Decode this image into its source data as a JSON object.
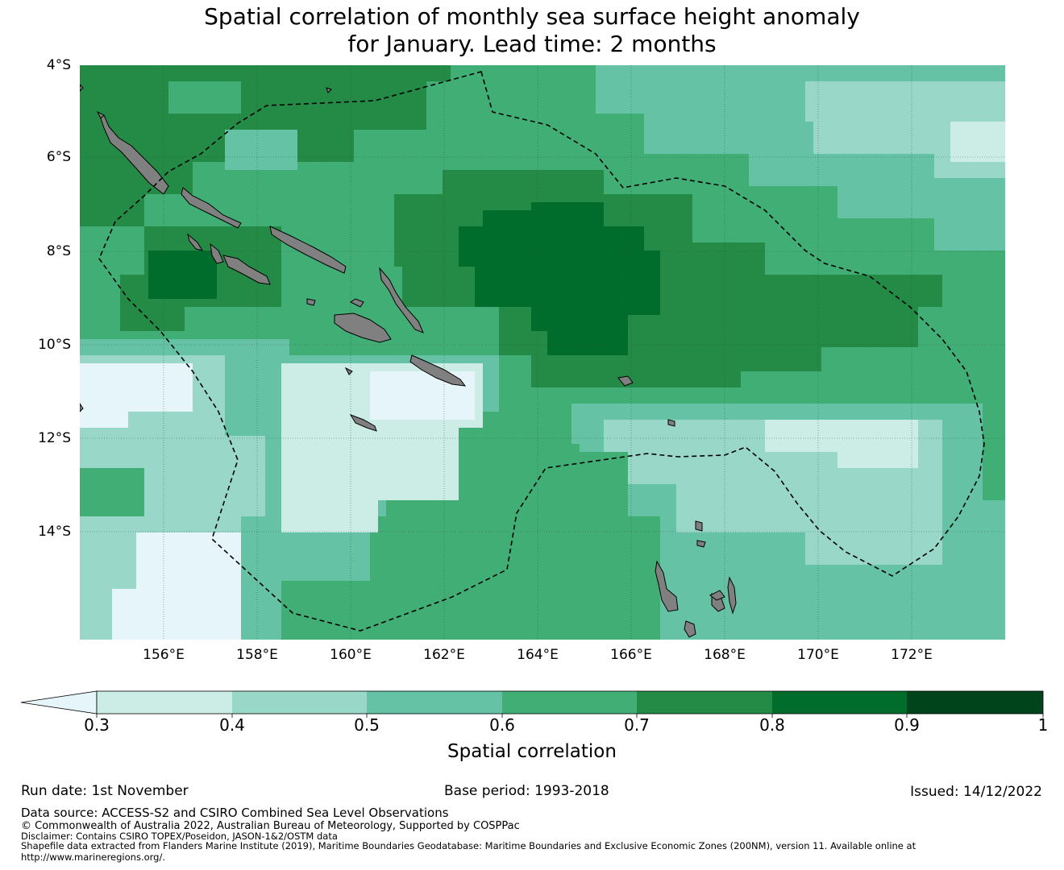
{
  "title": {
    "line1": "Spatial correlation of monthly sea surface height anomaly",
    "line2": "for January. Lead time: 2 months"
  },
  "map": {
    "lat_labels": [
      "4°S",
      "6°S",
      "8°S",
      "10°S",
      "12°S",
      "14°S"
    ],
    "lon_labels": [
      "156°E",
      "158°E",
      "160°E",
      "162°E",
      "164°E",
      "166°E",
      "168°E",
      "170°E",
      "172°E"
    ],
    "extent": {
      "lon_min": 154.2,
      "lon_max": 174.0,
      "lat_min": -16.3,
      "lat_max": -4.0
    },
    "land_color": "#808080",
    "eez_boundary_style": "dashed black"
  },
  "colorbar": {
    "title": "Spatial correlation",
    "ticks": [
      "0.3",
      "0.4",
      "0.5",
      "0.6",
      "0.7",
      "0.8",
      "0.9",
      "1"
    ],
    "under_color": "#e5f5f9",
    "colors": [
      "#ccece6",
      "#99d8c9",
      "#66c2a4",
      "#41ae76",
      "#238b45",
      "#006d2c",
      "#00441b"
    ]
  },
  "footer": {
    "run_date": "Run date: 1st November",
    "base_period": "Base period: 1993-2018",
    "issued": "Issued: 14/12/2022",
    "data_source": "Data source: ACCESS-S2 and CSIRO Combined Sea Level Observations",
    "copyright": "© Commonwealth of Australia 2022, Australian Bureau of Meteorology, Supported by COSPPac",
    "disclaimer": "Disclaimer: Contains CSIRO TOPEX/Poseidon, JASON-1&2/OSTM data",
    "shapefile_line1": "Shapefile data extracted from Flanders Marine Institute (2019), Maritime Boundaries Geodatabase: Maritime Boundaries and Exclusive Economic Zones (200NM), version 11. Available online at",
    "shapefile_line2": "http://www.marineregions.org/."
  }
}
